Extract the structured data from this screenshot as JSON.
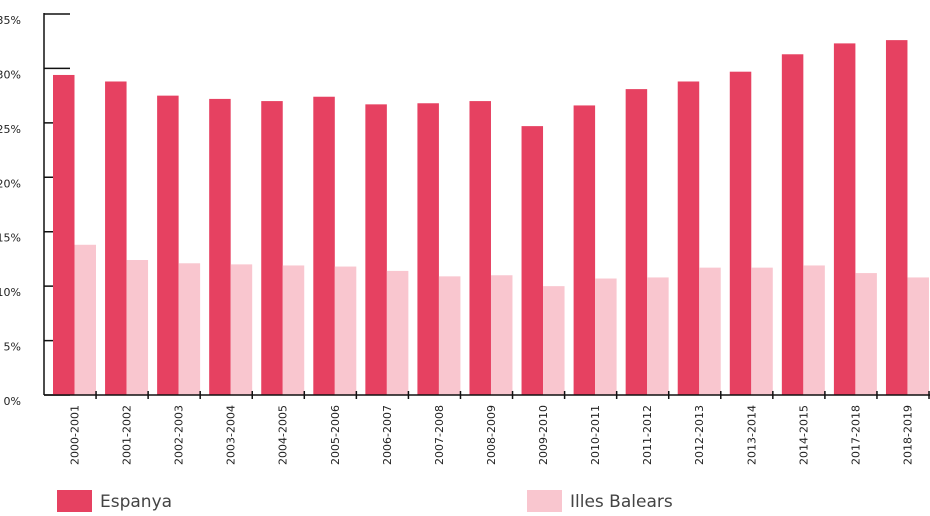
{
  "chart_data": {
    "type": "bar",
    "categories": [
      "2000-2001",
      "2001-2002",
      "2002-2003",
      "2003-2004",
      "2004-2005",
      "2005-2006",
      "2006-2007",
      "2007-2008",
      "2008-2009",
      "2009-2010",
      "2010-2011",
      "2011-2012",
      "2012-2013",
      "2013-2014",
      "2014-2015",
      "2017-2018",
      "2018-2019"
    ],
    "series": [
      {
        "name": "Espanya",
        "color": "#e64161",
        "values": [
          29.4,
          28.8,
          27.5,
          27.2,
          27.0,
          27.4,
          26.7,
          26.8,
          27.0,
          24.7,
          26.6,
          28.1,
          28.8,
          29.7,
          31.3,
          32.3,
          32.6
        ]
      },
      {
        "name": "Illes Balears",
        "color": "#f9c6cf",
        "values": [
          13.8,
          12.4,
          12.1,
          12.0,
          11.9,
          11.8,
          11.4,
          10.9,
          11.0,
          10.0,
          10.7,
          10.8,
          11.7,
          11.7,
          11.9,
          11.2,
          10.8
        ]
      }
    ],
    "ylim": [
      0,
      35
    ],
    "yticks": [
      {
        "value": 0,
        "label": "0%"
      },
      {
        "value": 5,
        "label": "5%"
      },
      {
        "value": 10,
        "label": "10%"
      },
      {
        "value": 15,
        "label": "15%"
      },
      {
        "value": 20,
        "label": "20%"
      },
      {
        "value": 25,
        "label": "25%"
      },
      {
        "value": 30,
        "label": "30%"
      },
      {
        "value": 35,
        "label": "35%"
      }
    ],
    "legend": "bottom"
  }
}
